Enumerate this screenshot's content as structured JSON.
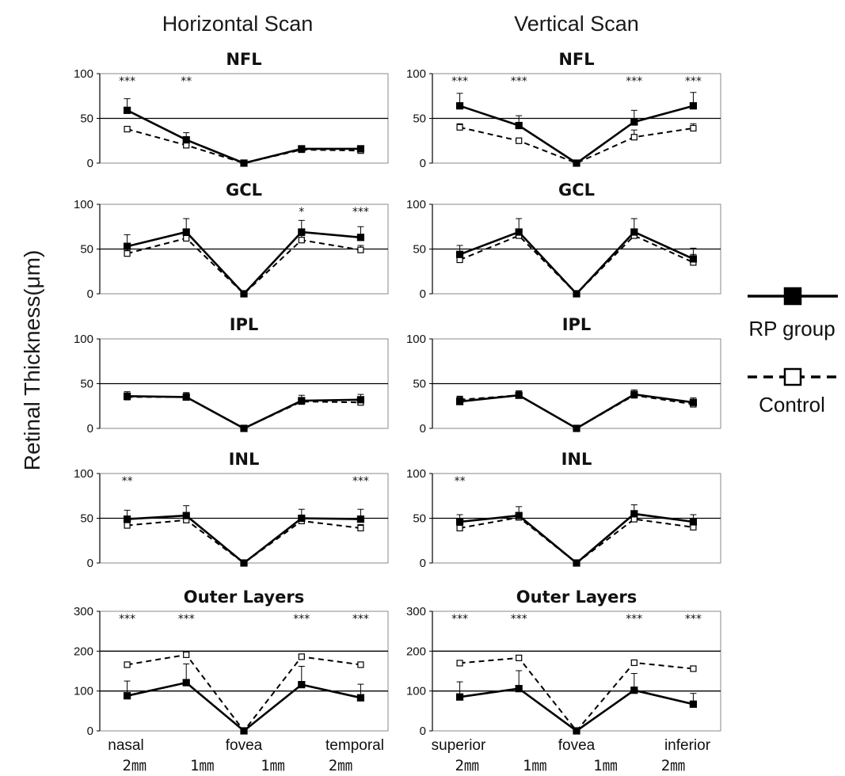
{
  "figure": {
    "ylabel": "Retinal Thickness(μm)",
    "columns": [
      "Horizontal Scan",
      "Vertical Scan"
    ],
    "x_distance_labels": [
      "2㎜",
      "1㎜",
      "1㎜",
      "2㎜"
    ],
    "legend": [
      {
        "name": "RP group",
        "style": "solid",
        "marker": "filled-square"
      },
      {
        "name": "Control",
        "style": "dashed",
        "marker": "open-square"
      }
    ],
    "colors": {
      "line": "#000000",
      "background": "#ffffff"
    }
  },
  "chart_data": [
    {
      "type": "line",
      "scan": "Horizontal Scan",
      "title": "NFL",
      "ylim": [
        0,
        100
      ],
      "yticks": [
        0,
        50,
        100
      ],
      "reference_line": 50,
      "x_axis_labels": [],
      "series": [
        {
          "name": "RP group",
          "values": [
            59,
            26,
            0,
            16,
            16
          ],
          "errors": [
            13,
            8,
            0,
            3,
            3
          ]
        },
        {
          "name": "Control",
          "values": [
            38,
            20,
            0,
            15,
            14
          ],
          "errors": [
            3,
            3,
            0,
            3,
            3
          ]
        }
      ],
      "significance": [
        "***",
        "**",
        "",
        "",
        ""
      ]
    },
    {
      "type": "line",
      "scan": "Vertical Scan",
      "title": "NFL",
      "ylim": [
        0,
        100
      ],
      "yticks": [
        0,
        50,
        100
      ],
      "reference_line": 50,
      "x_axis_labels": [],
      "series": [
        {
          "name": "RP group",
          "values": [
            64,
            42,
            0,
            46,
            64
          ],
          "errors": [
            14,
            11,
            0,
            13,
            15
          ]
        },
        {
          "name": "Control",
          "values": [
            40,
            25,
            0,
            29,
            39
          ],
          "errors": [
            4,
            3,
            0,
            8,
            5
          ]
        }
      ],
      "significance": [
        "***",
        "***",
        "",
        "***",
        "***"
      ]
    },
    {
      "type": "line",
      "scan": "Horizontal Scan",
      "title": "GCL",
      "ylim": [
        0,
        100
      ],
      "yticks": [
        0,
        50,
        100
      ],
      "reference_line": 50,
      "x_axis_labels": [],
      "series": [
        {
          "name": "RP group",
          "values": [
            53,
            69,
            0,
            69,
            63
          ],
          "errors": [
            13,
            15,
            0,
            13,
            12
          ]
        },
        {
          "name": "Control",
          "values": [
            45,
            62,
            0,
            60,
            49
          ],
          "errors": [
            5,
            5,
            0,
            5,
            5
          ]
        }
      ],
      "significance": [
        "",
        "",
        "",
        "*",
        "***"
      ]
    },
    {
      "type": "line",
      "scan": "Vertical Scan",
      "title": "GCL",
      "ylim": [
        0,
        100
      ],
      "yticks": [
        0,
        50,
        100
      ],
      "reference_line": 50,
      "x_axis_labels": [],
      "series": [
        {
          "name": "RP group",
          "values": [
            44,
            69,
            0,
            69,
            39
          ],
          "errors": [
            10,
            15,
            0,
            15,
            12
          ]
        },
        {
          "name": "Control",
          "values": [
            38,
            65,
            0,
            65,
            35
          ],
          "errors": [
            5,
            5,
            0,
            5,
            9
          ]
        }
      ],
      "significance": [
        "",
        "",
        "",
        "",
        ""
      ]
    },
    {
      "type": "line",
      "scan": "Horizontal Scan",
      "title": "IPL",
      "ylim": [
        0,
        100
      ],
      "yticks": [
        0,
        50,
        100
      ],
      "reference_line": 50,
      "x_axis_labels": [],
      "series": [
        {
          "name": "RP group",
          "values": [
            36,
            35,
            0,
            31,
            32
          ],
          "errors": [
            5,
            5,
            0,
            6,
            6
          ]
        },
        {
          "name": "Control",
          "values": [
            35,
            35,
            0,
            30,
            29
          ],
          "errors": [
            4,
            4,
            0,
            4,
            4
          ]
        }
      ],
      "significance": [
        "",
        "",
        "",
        "",
        ""
      ]
    },
    {
      "type": "line",
      "scan": "Vertical Scan",
      "title": "IPL",
      "ylim": [
        0,
        100
      ],
      "yticks": [
        0,
        50,
        100
      ],
      "reference_line": 50,
      "x_axis_labels": [],
      "series": [
        {
          "name": "RP group",
          "values": [
            30,
            37,
            0,
            38,
            29
          ],
          "errors": [
            4,
            5,
            0,
            5,
            5
          ]
        },
        {
          "name": "Control",
          "values": [
            32,
            37,
            0,
            37,
            27
          ],
          "errors": [
            4,
            4,
            0,
            4,
            4
          ]
        }
      ],
      "significance": [
        "",
        "",
        "",
        "",
        ""
      ]
    },
    {
      "type": "line",
      "scan": "Horizontal Scan",
      "title": "INL",
      "ylim": [
        0,
        100
      ],
      "yticks": [
        0,
        50,
        100
      ],
      "reference_line": 50,
      "x_axis_labels": [],
      "series": [
        {
          "name": "RP group",
          "values": [
            49,
            53,
            0,
            50,
            49
          ],
          "errors": [
            10,
            11,
            0,
            10,
            11
          ]
        },
        {
          "name": "Control",
          "values": [
            42,
            48,
            0,
            47,
            39
          ],
          "errors": [
            4,
            4,
            0,
            4,
            4
          ]
        }
      ],
      "significance": [
        "**",
        "",
        "",
        "",
        "***"
      ]
    },
    {
      "type": "line",
      "scan": "Vertical Scan",
      "title": "INL",
      "ylim": [
        0,
        100
      ],
      "yticks": [
        0,
        50,
        100
      ],
      "reference_line": 50,
      "x_axis_labels": [],
      "series": [
        {
          "name": "RP group",
          "values": [
            46,
            53,
            0,
            55,
            46
          ],
          "errors": [
            8,
            10,
            0,
            10,
            8
          ]
        },
        {
          "name": "Control",
          "values": [
            39,
            51,
            0,
            49,
            40
          ],
          "errors": [
            4,
            4,
            0,
            4,
            4
          ]
        }
      ],
      "significance": [
        "**",
        "",
        "",
        "",
        ""
      ]
    },
    {
      "type": "line",
      "scan": "Horizontal Scan",
      "title": "Outer Layers",
      "ylim": [
        0,
        300
      ],
      "yticks": [
        0,
        100,
        200,
        300
      ],
      "reference_line": 100,
      "extra_gridlines": [
        200
      ],
      "x_axis_labels": [
        "nasal",
        "fovea",
        "temporal"
      ],
      "series": [
        {
          "name": "RP group",
          "values": [
            88,
            121,
            0,
            116,
            83
          ],
          "errors": [
            37,
            47,
            0,
            46,
            34
          ]
        },
        {
          "name": "Control",
          "values": [
            166,
            191,
            0,
            186,
            166
          ],
          "errors": [
            6,
            6,
            0,
            6,
            6
          ]
        }
      ],
      "significance": [
        "***",
        "***",
        "",
        "***",
        "***"
      ]
    },
    {
      "type": "line",
      "scan": "Vertical Scan",
      "title": "Outer Layers",
      "ylim": [
        0,
        300
      ],
      "yticks": [
        0,
        100,
        200,
        300
      ],
      "reference_line": 100,
      "extra_gridlines": [
        200
      ],
      "x_axis_labels": [
        "superior",
        "fovea",
        "inferior"
      ],
      "series": [
        {
          "name": "RP group",
          "values": [
            85,
            106,
            0,
            102,
            67
          ],
          "errors": [
            38,
            45,
            0,
            42,
            27
          ]
        },
        {
          "name": "Control",
          "values": [
            170,
            183,
            0,
            171,
            156
          ],
          "errors": [
            6,
            6,
            0,
            6,
            6
          ]
        }
      ],
      "significance": [
        "***",
        "***",
        "",
        "***",
        "***"
      ]
    }
  ]
}
